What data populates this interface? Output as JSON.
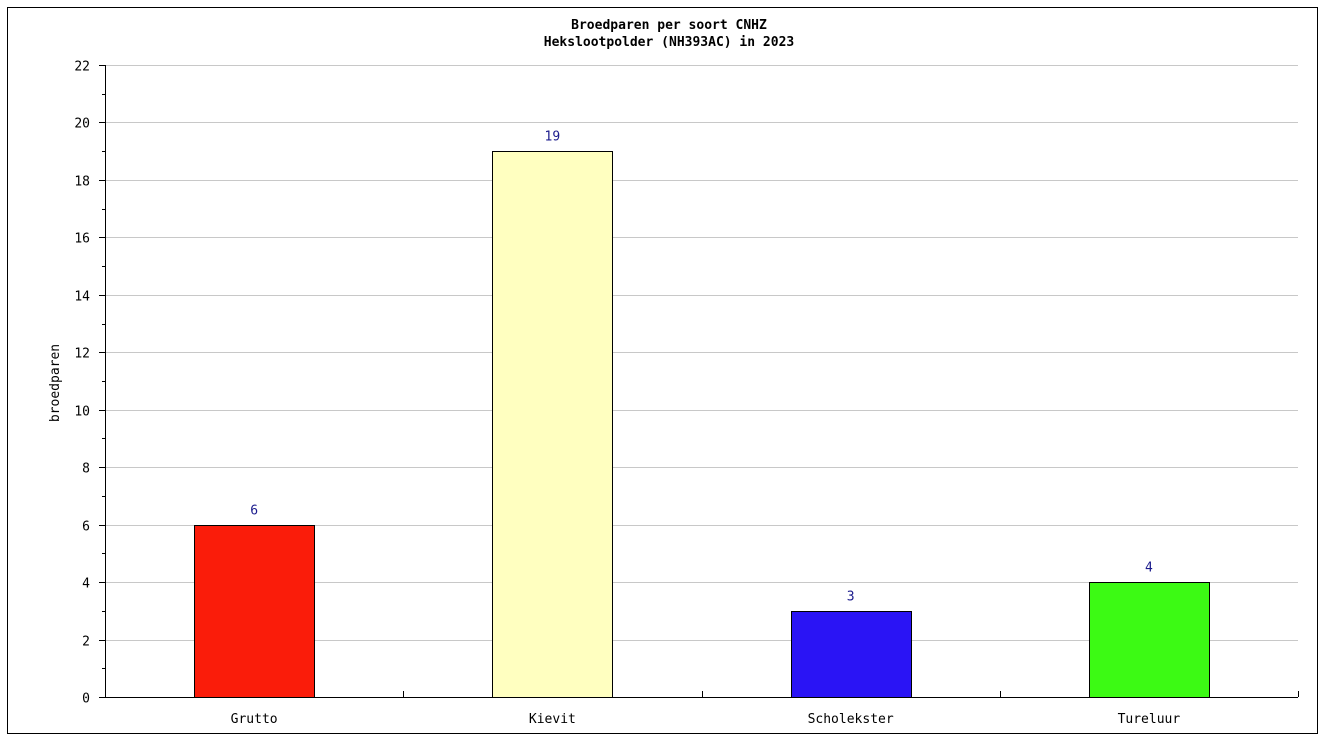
{
  "chart_data": {
    "type": "bar",
    "title": "Broedparen per soort CNHZ",
    "subtitle": "Hekslootpolder (NH393AC) in 2023",
    "xlabel": "",
    "ylabel": "broedparen",
    "categories": [
      "Grutto",
      "Kievit",
      "Scholekster",
      "Tureluur"
    ],
    "values": [
      6,
      19,
      3,
      4
    ],
    "value_labels": [
      "6",
      "19",
      "3",
      "4"
    ],
    "bar_colors": [
      "#fa1c0a",
      "#ffffc0",
      "#2a14f5",
      "#3cfa14"
    ],
    "ylim": [
      0,
      22
    ],
    "yticks": [
      0,
      2,
      4,
      6,
      8,
      10,
      12,
      14,
      16,
      18,
      20,
      22
    ],
    "ytick_labels": [
      "0",
      "2",
      "4",
      "6",
      "8",
      "10",
      "12",
      "14",
      "16",
      "18",
      "20",
      "22"
    ],
    "grid": true,
    "legend": "none",
    "colors": {
      "grid": "#c8c8c8",
      "axis": "#000000",
      "value_label": "#1a1a8c"
    }
  }
}
